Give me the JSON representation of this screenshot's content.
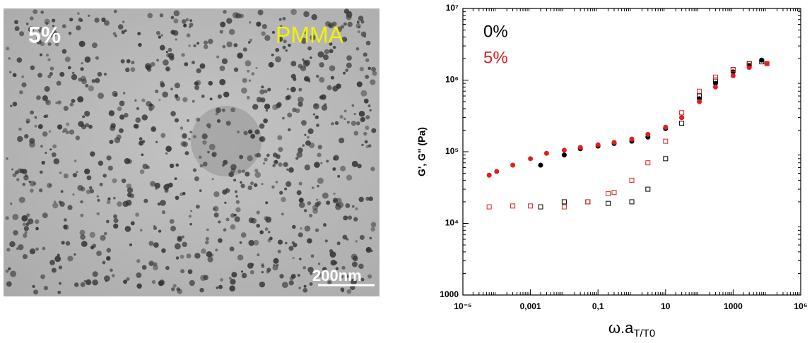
{
  "image": {
    "corner_label": "5%",
    "material": "PMMA",
    "scale_bar": "200nm"
  },
  "chart_data": {
    "type": "scatter",
    "log_x": true,
    "log_y": true,
    "xlabel": {
      "main": "ω.a",
      "sub": "T/T0"
    },
    "ylabel": "G', G\" (Pa)",
    "xlim": [
      1e-05,
      100000
    ],
    "ylim": [
      1000,
      10000000
    ],
    "xticks": [
      {
        "value": 1e-05,
        "label": "10⁻⁵"
      },
      {
        "value": 0.001,
        "label": "0,001"
      },
      {
        "value": 0.1,
        "label": "0,1"
      },
      10,
      1000,
      {
        "value": 100000,
        "label": "10⁵"
      }
    ],
    "yticks": [
      1000,
      {
        "value": 10000,
        "label": "10⁴"
      },
      {
        "value": 100000,
        "label": "10⁵"
      },
      {
        "value": 1000000,
        "label": "10⁶"
      },
      {
        "value": 10000000,
        "label": "10⁷"
      }
    ],
    "series": [
      {
        "name": "0%",
        "color": "#000000",
        "marker": "circle",
        "x": [
          0.002,
          0.01,
          0.03,
          0.1,
          0.3,
          1,
          3,
          10,
          30,
          100,
          300,
          1000,
          3000,
          7000
        ],
        "values": [
          65000,
          90000,
          110000,
          120000,
          130000,
          140000,
          160000,
          210000,
          300000,
          550000,
          900000,
          1300000,
          1600000,
          1900000
        ]
      },
      {
        "name": "5%",
        "color": "#e02020",
        "marker": "circle",
        "x": [
          6e-05,
          0.0001,
          0.0003,
          0.001,
          0.003,
          0.01,
          0.03,
          0.1,
          0.3,
          1,
          3,
          10,
          30,
          100,
          300,
          1000,
          3000,
          10000
        ],
        "values": [
          47000,
          53000,
          65000,
          80000,
          95000,
          105000,
          115000,
          125000,
          135000,
          150000,
          175000,
          220000,
          300000,
          500000,
          800000,
          1150000,
          1500000,
          1700000
        ]
      },
      {
        "color": "#000000",
        "marker": "square",
        "x": [
          0.002,
          0.01,
          0.05,
          0.2,
          1,
          3,
          10,
          30,
          100,
          300,
          1000,
          3000,
          7000
        ],
        "values": [
          17000,
          20000,
          20000,
          19000,
          20000,
          30000,
          80000,
          250000,
          600000,
          1000000,
          1400000,
          1700000,
          1800000
        ]
      },
      {
        "color": "#e02020",
        "marker": "square",
        "x": [
          6e-05,
          0.0003,
          0.001,
          0.01,
          0.05,
          0.2,
          0.3,
          1,
          3,
          10,
          30,
          100,
          300,
          1000,
          3000,
          10000
        ],
        "values": [
          17000,
          17500,
          17500,
          17000,
          20000,
          26000,
          27000,
          40000,
          70000,
          140000,
          350000,
          700000,
          1100000,
          1400000,
          1600000,
          1700000
        ]
      }
    ]
  }
}
